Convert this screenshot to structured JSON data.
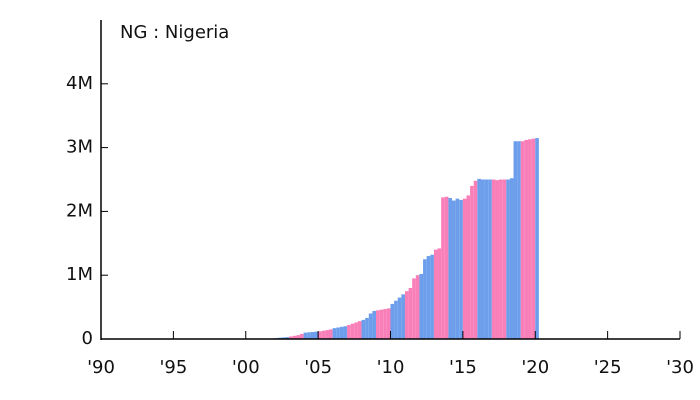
{
  "chart_data": {
    "type": "bar",
    "title": "NG : Nigeria",
    "x": [
      2001,
      2001.25,
      2001.5,
      2001.75,
      2002,
      2002.25,
      2002.5,
      2002.75,
      2003,
      2003.25,
      2003.5,
      2003.75,
      2004,
      2004.25,
      2004.5,
      2004.75,
      2005,
      2005.25,
      2005.5,
      2005.75,
      2006,
      2006.25,
      2006.5,
      2006.75,
      2007,
      2007.25,
      2007.5,
      2007.75,
      2008,
      2008.25,
      2008.5,
      2008.75,
      2009,
      2009.25,
      2009.5,
      2009.75,
      2010,
      2010.25,
      2010.5,
      2010.75,
      2011,
      2011.25,
      2011.5,
      2011.75,
      2012,
      2012.25,
      2012.5,
      2012.75,
      2013,
      2013.25,
      2013.5,
      2013.75,
      2014,
      2014.25,
      2014.5,
      2014.75,
      2015,
      2015.25,
      2015.5,
      2015.75,
      2016,
      2016.25,
      2016.5,
      2016.75,
      2017,
      2017.25,
      2017.5,
      2017.75,
      2018,
      2018.25,
      2018.5,
      2018.75,
      2019,
      2019.25,
      2019.5,
      2019.75,
      2020
    ],
    "values": [
      3000,
      5000,
      8000,
      10000,
      15000,
      20000,
      25000,
      30000,
      40000,
      50000,
      60000,
      80000,
      100000,
      105000,
      110000,
      115000,
      120000,
      130000,
      140000,
      150000,
      170000,
      180000,
      190000,
      200000,
      220000,
      240000,
      260000,
      280000,
      300000,
      330000,
      400000,
      440000,
      450000,
      460000,
      470000,
      480000,
      550000,
      600000,
      650000,
      700000,
      750000,
      800000,
      950000,
      1000000,
      1020000,
      1250000,
      1300000,
      1320000,
      1400000,
      1420000,
      2220000,
      2230000,
      2210000,
      2170000,
      2200000,
      2180000,
      2200000,
      2250000,
      2400000,
      2480000,
      2510000,
      2500000,
      2500000,
      2500000,
      2500000,
      2490000,
      2500000,
      2500000,
      2500000,
      2520000,
      3100000,
      3100000,
      3100000,
      3120000,
      3130000,
      3140000,
      3150000
    ],
    "bar_width": 0.25,
    "colors": [
      "#6d9eeb",
      "#f97fb9"
    ],
    "xlim": [
      1990,
      2030
    ],
    "xticks": [
      {
        "value": 1990,
        "label": "'90"
      },
      {
        "value": 1995,
        "label": "'95"
      },
      {
        "value": 2000,
        "label": "'00"
      },
      {
        "value": 2005,
        "label": "'05"
      },
      {
        "value": 2010,
        "label": "'10"
      },
      {
        "value": 2015,
        "label": "'15"
      },
      {
        "value": 2020,
        "label": "'20"
      },
      {
        "value": 2025,
        "label": "'25"
      },
      {
        "value": 2030,
        "label": "'30"
      }
    ],
    "ylim": [
      0,
      5000000
    ],
    "yticks": [
      0,
      {
        "value": 1000000,
        "label": "1M"
      },
      {
        "value": 2000000,
        "label": "2M"
      },
      {
        "value": 3000000,
        "label": "3M"
      },
      {
        "value": 4000000,
        "label": "4M"
      }
    ]
  }
}
